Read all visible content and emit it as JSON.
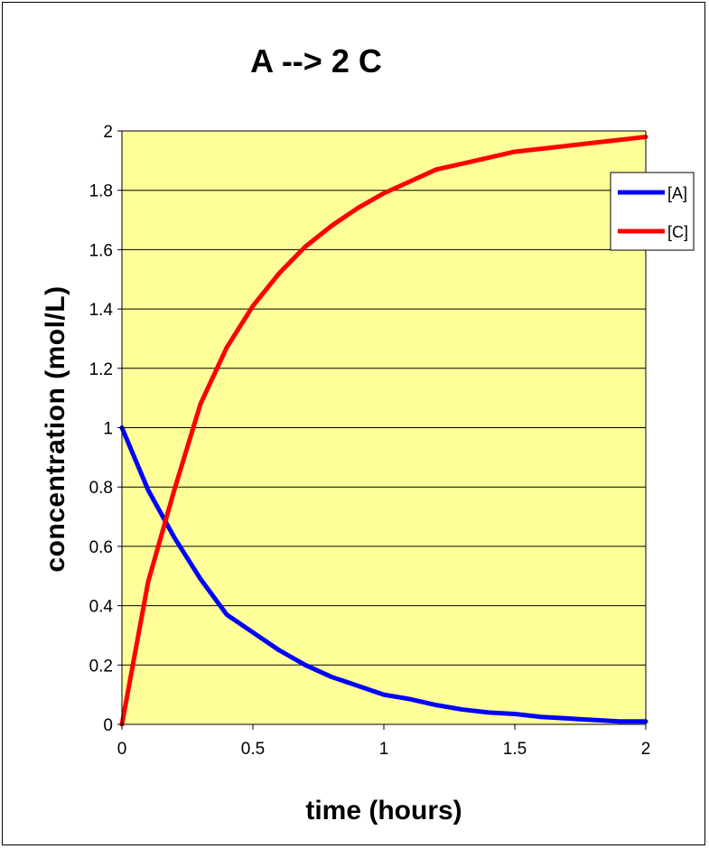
{
  "chart_data": {
    "type": "line",
    "title": "A --> 2 C",
    "xlabel": "time (hours)",
    "ylabel": "concentration (mol/L)",
    "xlim": [
      0,
      2
    ],
    "ylim": [
      0,
      2
    ],
    "x_ticks": [
      "0",
      "0.5",
      "1",
      "1.5",
      "2"
    ],
    "y_ticks": [
      "0",
      "0.2",
      "0.4",
      "0.6",
      "0.8",
      "1",
      "1.2",
      "1.4",
      "1.6",
      "1.8",
      "2"
    ],
    "grid": "horizontal",
    "legend_position": "right",
    "plot_background": "#ffff99",
    "x": [
      0,
      0.1,
      0.2,
      0.3,
      0.4,
      0.5,
      0.6,
      0.7,
      0.8,
      0.9,
      1.0,
      1.1,
      1.2,
      1.3,
      1.4,
      1.5,
      1.6,
      1.7,
      1.8,
      1.9,
      2.0
    ],
    "series": [
      {
        "name": "[A]",
        "color": "#0000ff",
        "values": [
          1.0,
          0.79,
          0.63,
          0.49,
          0.37,
          0.31,
          0.25,
          0.2,
          0.16,
          0.13,
          0.1,
          0.085,
          0.065,
          0.05,
          0.04,
          0.035,
          0.025,
          0.02,
          0.015,
          0.01,
          0.01
        ]
      },
      {
        "name": "[C]",
        "color": "#ff0000",
        "values": [
          0.0,
          0.48,
          0.79,
          1.08,
          1.27,
          1.41,
          1.52,
          1.61,
          1.68,
          1.74,
          1.79,
          1.83,
          1.87,
          1.89,
          1.91,
          1.93,
          1.94,
          1.95,
          1.96,
          1.97,
          1.98
        ]
      }
    ]
  }
}
